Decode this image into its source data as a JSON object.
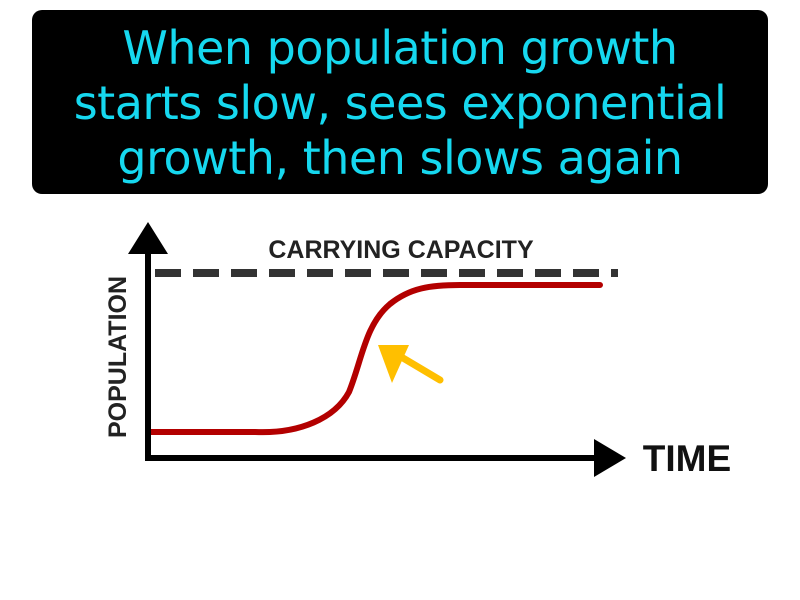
{
  "caption": {
    "lines": [
      "When population growth",
      "starts slow, sees exponential",
      "growth, then slows again"
    ]
  },
  "diagram": {
    "y_axis_label": "POPULATION",
    "x_axis_label": "TIME",
    "carrying_capacity_label": "CARRYING CAPACITY",
    "colors": {
      "caption_background": "#000000",
      "caption_text": "#16d8ef",
      "curve": "#b30000",
      "arrow_highlight": "#ffbf00",
      "axes": "#000000",
      "dashed_line": "#333333",
      "labels": "#222222"
    }
  }
}
